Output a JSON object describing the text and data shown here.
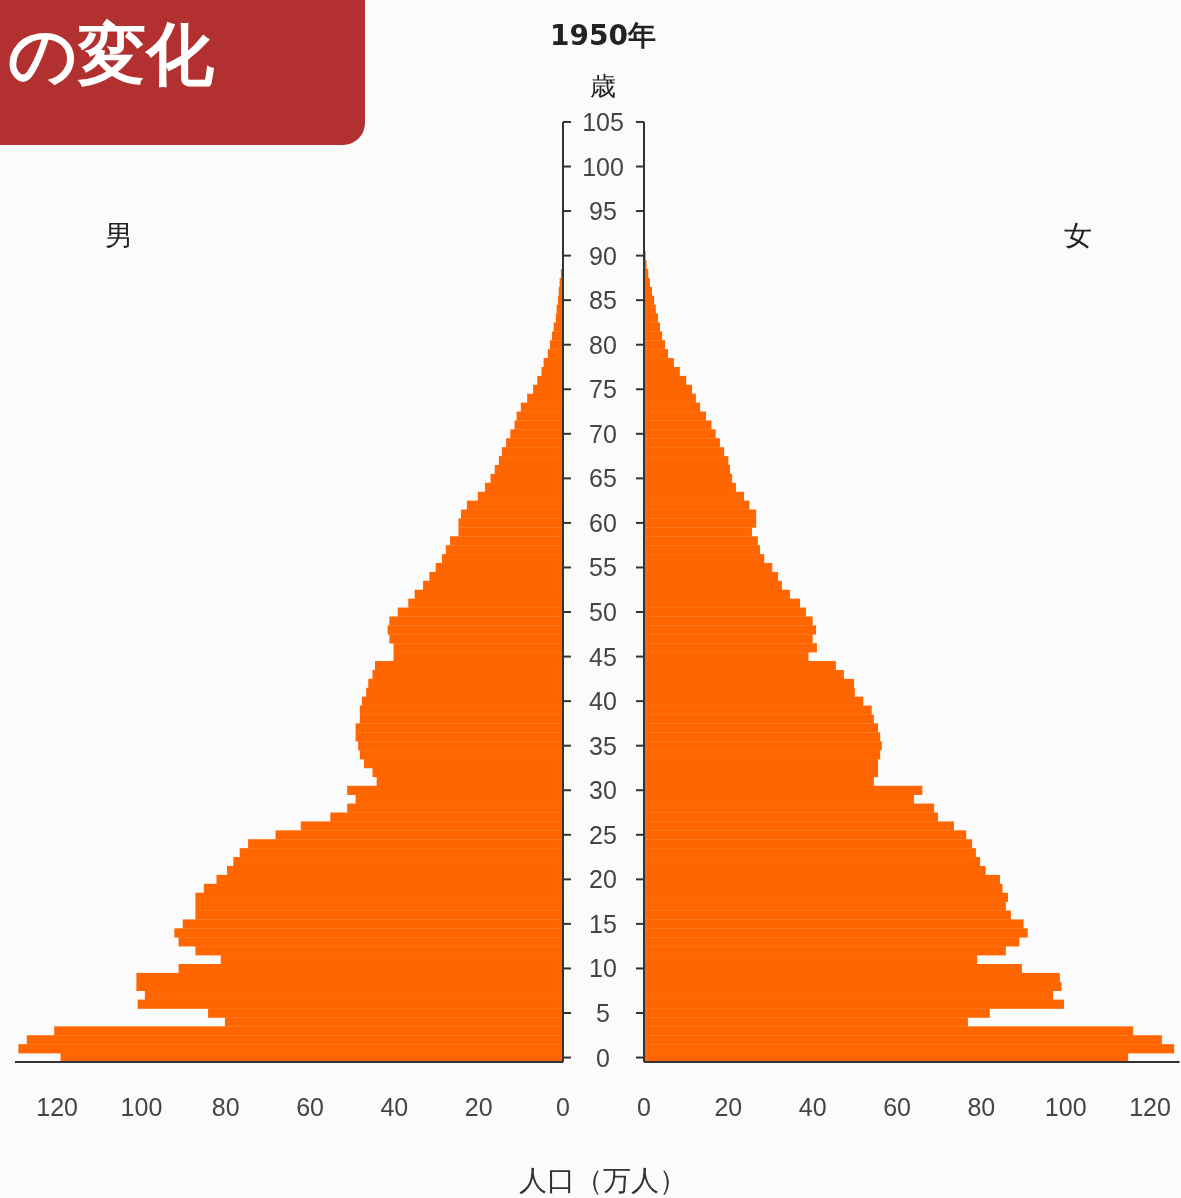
{
  "chart_data": [
    {
      "type": "bar",
      "orientation": "horizontal",
      "title": "1950年",
      "ylabel": "歳",
      "xlabel": "人口（万人）",
      "annotations": [
        "の変化"
      ],
      "categories": [
        "105",
        null,
        null,
        null,
        null,
        "100",
        null,
        null,
        null,
        null,
        "95",
        null,
        null,
        null,
        null,
        "90",
        null,
        null,
        null,
        null,
        "85",
        null,
        null,
        null,
        null,
        "80",
        null,
        null,
        null,
        null,
        "75",
        null,
        null,
        null,
        null,
        "70",
        null,
        null,
        null,
        null,
        "65",
        null,
        null,
        null,
        null,
        "60",
        null,
        null,
        null,
        null,
        "55",
        null,
        null,
        null,
        null,
        "50",
        null,
        null,
        null,
        null,
        "45",
        null,
        null,
        null,
        null,
        "40",
        null,
        null,
        null,
        null,
        "35",
        null,
        null,
        null,
        null,
        "30",
        null,
        null,
        null,
        null,
        "25",
        null,
        null,
        null,
        null,
        "20",
        null,
        null,
        null,
        null,
        "15",
        null,
        null,
        null,
        null,
        "10",
        null,
        null,
        null,
        null,
        "5",
        null,
        null,
        null,
        null,
        "0"
      ],
      "xlim": [
        130,
        0
      ],
      "xticks": [
        120,
        100,
        80,
        60,
        40,
        20,
        0
      ],
      "series": [
        {
          "name": "男",
          "color": "#ff6600",
          "values": [
            0,
            0,
            0,
            0,
            0,
            0,
            0,
            0,
            0,
            0,
            0,
            0,
            0,
            0,
            0,
            0,
            0,
            0.5,
            0.8,
            1,
            1.2,
            1.5,
            1.7,
            2.2,
            2.6,
            3.1,
            3.6,
            4.6,
            5.1,
            6.1,
            7.1,
            8.5,
            10,
            11,
            11.5,
            12.5,
            13.5,
            14.5,
            15.2,
            16.2,
            17.2,
            18.5,
            20.2,
            22.8,
            24.2,
            24.8,
            24.8,
            26.8,
            27.8,
            28.7,
            30.2,
            31.7,
            33.2,
            35.2,
            36.7,
            39.2,
            41.2,
            41.6,
            41.2,
            40.2,
            40.2,
            44.6,
            45.2,
            46.2,
            46.7,
            47.7,
            48.2,
            48.2,
            49.2,
            49.2,
            48.6,
            48.2,
            47.2,
            45.2,
            44.2,
            51.2,
            49.2,
            51.2,
            55.2,
            62.2,
            68.2,
            74.7,
            76.7,
            78.2,
            79.7,
            82.2,
            85.2,
            87.2,
            87.2,
            87.2,
            90.2,
            92.2,
            91.2,
            87.2,
            81.2,
            91.2,
            101.2,
            101.2,
            99.2,
            100.9,
            84.2,
            80.2,
            120.7,
            127.2,
            129.2,
            119.2
          ]
        }
      ]
    },
    {
      "type": "bar",
      "orientation": "horizontal",
      "tick_labels": "x",
      "categories": [
        "105",
        null,
        null,
        null,
        null,
        "100",
        null,
        null,
        null,
        null,
        "95",
        null,
        null,
        null,
        null,
        "90",
        null,
        null,
        null,
        null,
        "85",
        null,
        null,
        null,
        null,
        "80",
        null,
        null,
        null,
        null,
        "75",
        null,
        null,
        null,
        null,
        "70",
        null,
        null,
        null,
        null,
        "65",
        null,
        null,
        null,
        null,
        "60",
        null,
        null,
        null,
        null,
        "55",
        null,
        null,
        null,
        null,
        "50",
        null,
        null,
        null,
        null,
        "45",
        null,
        null,
        null,
        null,
        "40",
        null,
        null,
        null,
        null,
        "35",
        null,
        null,
        null,
        null,
        "30",
        null,
        null,
        null,
        null,
        "25",
        null,
        null,
        null,
        null,
        "20",
        null,
        null,
        null,
        null,
        "15",
        null,
        null,
        null,
        null,
        "10",
        null,
        null,
        null,
        null,
        "5",
        null,
        null,
        null,
        null,
        "0"
      ],
      "xlim": [
        0,
        127
      ],
      "xticks": [
        0,
        20,
        40,
        60,
        80,
        100,
        120
      ],
      "series": [
        {
          "name": "女",
          "color": "#ff6600",
          "values": [
            0,
            0,
            0,
            0,
            0,
            0,
            0,
            0,
            0,
            0,
            0,
            0,
            0,
            0,
            0,
            0.4,
            0.6,
            1,
            1.4,
            1.9,
            2.4,
            2.8,
            3.3,
            3.8,
            4.3,
            5,
            5.7,
            7.1,
            8.5,
            10,
            11.4,
            12.3,
            13.3,
            14.7,
            16,
            17,
            18,
            19,
            20,
            20.4,
            20.9,
            21.8,
            23.7,
            25,
            26.6,
            26.6,
            25.6,
            27,
            27.5,
            28.5,
            30.4,
            31.8,
            32.7,
            34.6,
            37,
            38.4,
            40,
            40.8,
            40,
            41,
            39,
            45.5,
            47.4,
            49.8,
            50,
            52,
            54,
            54.5,
            55.5,
            56,
            56.4,
            56,
            55.5,
            55.5,
            54.5,
            66,
            64,
            68.8,
            69.7,
            73.5,
            76.4,
            77.8,
            78.7,
            79.7,
            81,
            84.4,
            85,
            86.3,
            85.8,
            87,
            90,
            91,
            89,
            85.8,
            79,
            89.6,
            98.6,
            99,
            97,
            99.6,
            82,
            76.8,
            116,
            122.8,
            125.7,
            114.8
          ]
        }
      ]
    }
  ]
}
